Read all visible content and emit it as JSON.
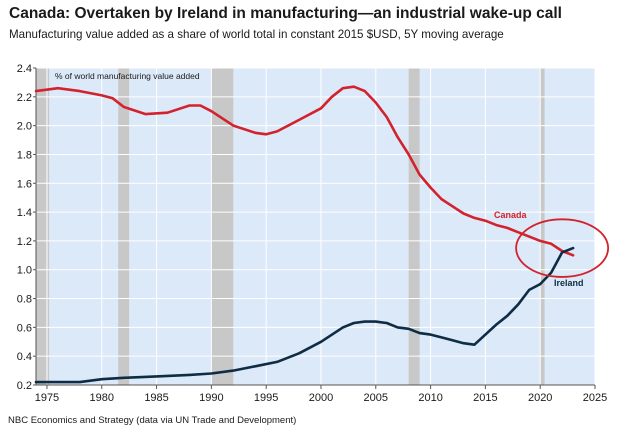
{
  "chart_data": {
    "type": "line",
    "title": "Canada: Overtaken by Ireland in manufacturing—an industrial wake-up call",
    "subtitle": "Manufacturing value added as a share of world total in constant 2015 $USD, 5Y moving average",
    "ylabel": "% of world manufacturing value added",
    "source": "NBC Economics and Strategy (data via UN Trade and Development)",
    "xlim": [
      1974,
      2025
    ],
    "ylim": [
      0.2,
      2.4
    ],
    "x_ticks": [
      1975,
      1980,
      1985,
      1990,
      1995,
      2000,
      2005,
      2010,
      2015,
      2020,
      2025
    ],
    "y_ticks": [
      0.2,
      0.4,
      0.6,
      0.8,
      1.0,
      1.2,
      1.4,
      1.6,
      1.8,
      2.0,
      2.2,
      2.4
    ],
    "y_tick_labels": [
      "0.2",
      "0.4",
      "0.6",
      "0.8",
      "1.0",
      "1.2",
      "1.4",
      "1.6",
      "1.8",
      "2.0",
      "2.2",
      "2.4"
    ],
    "recessions": [
      [
        1974,
        1975.2
      ],
      [
        1981.5,
        1982.5
      ],
      [
        1990,
        1992
      ],
      [
        2008,
        2009
      ],
      [
        2020,
        2020.4
      ]
    ],
    "grid": true,
    "background": "#dce9f8",
    "series": [
      {
        "name": "Canada",
        "color": "#d2222d",
        "points": [
          [
            1974,
            2.24
          ],
          [
            1976,
            2.26
          ],
          [
            1978,
            2.24
          ],
          [
            1980,
            2.21
          ],
          [
            1981,
            2.19
          ],
          [
            1982,
            2.13
          ],
          [
            1984,
            2.08
          ],
          [
            1986,
            2.09
          ],
          [
            1988,
            2.14
          ],
          [
            1989,
            2.14
          ],
          [
            1990,
            2.1
          ],
          [
            1992,
            2.0
          ],
          [
            1994,
            1.95
          ],
          [
            1995,
            1.94
          ],
          [
            1996,
            1.96
          ],
          [
            1998,
            2.04
          ],
          [
            2000,
            2.12
          ],
          [
            2001,
            2.2
          ],
          [
            2002,
            2.26
          ],
          [
            2003,
            2.27
          ],
          [
            2004,
            2.24
          ],
          [
            2005,
            2.16
          ],
          [
            2006,
            2.06
          ],
          [
            2007,
            1.92
          ],
          [
            2008,
            1.8
          ],
          [
            2009,
            1.66
          ],
          [
            2010,
            1.57
          ],
          [
            2011,
            1.49
          ],
          [
            2012,
            1.44
          ],
          [
            2013,
            1.39
          ],
          [
            2014,
            1.36
          ],
          [
            2015,
            1.34
          ],
          [
            2016,
            1.31
          ],
          [
            2017,
            1.29
          ],
          [
            2018,
            1.26
          ],
          [
            2019,
            1.23
          ],
          [
            2020,
            1.2
          ],
          [
            2021,
            1.18
          ],
          [
            2022,
            1.13
          ],
          [
            2023,
            1.1
          ]
        ]
      },
      {
        "name": "Ireland",
        "color": "#0e2c44",
        "points": [
          [
            1974,
            0.22
          ],
          [
            1976,
            0.22
          ],
          [
            1978,
            0.22
          ],
          [
            1980,
            0.24
          ],
          [
            1982,
            0.25
          ],
          [
            1985,
            0.26
          ],
          [
            1988,
            0.27
          ],
          [
            1990,
            0.28
          ],
          [
            1992,
            0.3
          ],
          [
            1994,
            0.33
          ],
          [
            1996,
            0.36
          ],
          [
            1998,
            0.42
          ],
          [
            2000,
            0.5
          ],
          [
            2002,
            0.6
          ],
          [
            2003,
            0.63
          ],
          [
            2004,
            0.64
          ],
          [
            2005,
            0.64
          ],
          [
            2006,
            0.63
          ],
          [
            2007,
            0.6
          ],
          [
            2008,
            0.59
          ],
          [
            2009,
            0.56
          ],
          [
            2010,
            0.55
          ],
          [
            2011,
            0.53
          ],
          [
            2012,
            0.51
          ],
          [
            2013,
            0.49
          ],
          [
            2014,
            0.48
          ],
          [
            2015,
            0.55
          ],
          [
            2016,
            0.62
          ],
          [
            2017,
            0.68
          ],
          [
            2018,
            0.76
          ],
          [
            2019,
            0.86
          ],
          [
            2020,
            0.9
          ],
          [
            2021,
            0.98
          ],
          [
            2022,
            1.12
          ],
          [
            2023,
            1.15
          ]
        ]
      }
    ],
    "highlight": {
      "x": 2022,
      "y": 1.15,
      "rx_years": 4.2,
      "ry_value": 0.2,
      "color": "#d2222d"
    }
  }
}
